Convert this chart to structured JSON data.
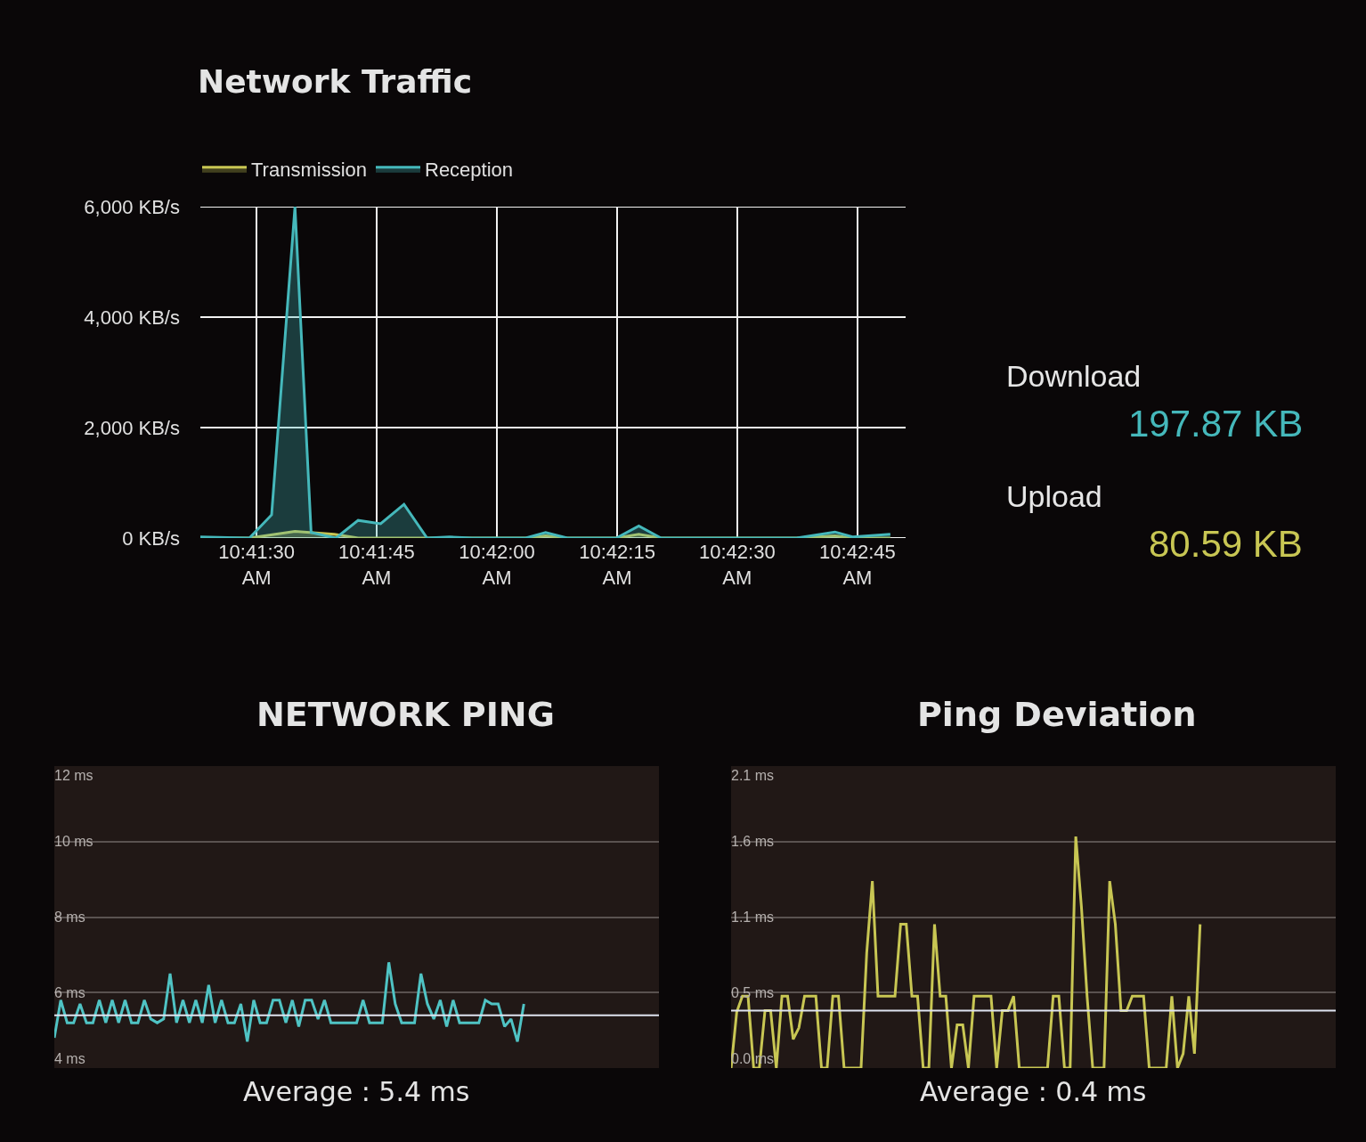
{
  "chart_data": [
    {
      "type": "area",
      "title": "Network Traffic",
      "legend": "top left",
      "grid": true,
      "xlim": [
        10.68972,
        10.71417
      ],
      "xticks": [
        {
          "value": 10.69167,
          "label": "10:41:30 AM"
        },
        {
          "value": 10.69583,
          "label": "10:41:45 AM"
        },
        {
          "value": 10.7,
          "label": "10:42:00 AM"
        },
        {
          "value": 10.70417,
          "label": "10:42:15 AM"
        },
        {
          "value": 10.70833,
          "label": "10:42:30 AM"
        },
        {
          "value": 10.7125,
          "label": "10:42:45 AM"
        }
      ],
      "ylim": [
        0,
        6000
      ],
      "yticks": [
        {
          "value": 0,
          "label": "0 KB/s"
        },
        {
          "value": 2000,
          "label": "2,000 KB/s"
        },
        {
          "value": 4000,
          "label": "4,000 KB/s"
        },
        {
          "value": 6000,
          "label": "6,000 KB/s"
        }
      ],
      "series": [
        {
          "name": "Transmission",
          "color": "#c8c653",
          "x": [
            10.68972,
            10.69142,
            10.693,
            10.69436,
            10.69519,
            10.69758,
            10.701,
            10.70169,
            10.70244,
            10.70414,
            10.70492,
            10.70569,
            10.71039,
            10.71172,
            10.71233,
            10.71364
          ],
          "values": [
            0,
            0,
            120,
            70,
            0,
            0,
            0,
            40,
            0,
            0,
            70,
            0,
            0,
            40,
            0,
            0
          ]
        },
        {
          "name": "Reception",
          "color": "#45b8bb",
          "x": [
            10.68972,
            10.69142,
            10.69219,
            10.693,
            10.69356,
            10.69442,
            10.69519,
            10.69597,
            10.69678,
            10.69758,
            10.69836,
            10.69914,
            10.701,
            10.70169,
            10.70244,
            10.70414,
            10.70492,
            10.70569,
            10.71039,
            10.71172,
            10.71233,
            10.71364
          ],
          "values": [
            20,
            0,
            420,
            6000,
            100,
            0,
            320,
            260,
            610,
            0,
            20,
            0,
            0,
            100,
            0,
            0,
            220,
            0,
            0,
            110,
            20,
            70
          ]
        }
      ]
    },
    {
      "type": "other",
      "categories": [
        "Download",
        "Upload"
      ],
      "value_labels": [
        "197.87 KB",
        "80.59 KB"
      ],
      "colors": [
        "#45b8bb",
        "#c8c653"
      ]
    },
    {
      "type": "line",
      "title": "NETWORK PING",
      "grid": "y",
      "tick_labels": "y",
      "categories": [
        null,
        null,
        null,
        null,
        null,
        null,
        null,
        null,
        null,
        null,
        null,
        null,
        null,
        null,
        null,
        null,
        null,
        null,
        null,
        null,
        null,
        null,
        null,
        null,
        null,
        null,
        null,
        null,
        null,
        null,
        null,
        null,
        null,
        null,
        null,
        null,
        null,
        null,
        null,
        null,
        null,
        null,
        null,
        null,
        null,
        null,
        null,
        null,
        null,
        null,
        null,
        null,
        null,
        null,
        null,
        null,
        null,
        null,
        null,
        null,
        null,
        null,
        null,
        null,
        null,
        null,
        null,
        null,
        null,
        null,
        null,
        null,
        null,
        null,
        null,
        null,
        null,
        null,
        null,
        null,
        null,
        null,
        null,
        null,
        null,
        null,
        null,
        null,
        null,
        null,
        null,
        null,
        null,
        null,
        null
      ],
      "ylim": [
        4,
        12
      ],
      "yticks": [
        {
          "value": 4,
          "label": "4 ms"
        },
        {
          "value": 6,
          "label": "6 ms"
        },
        {
          "value": 8,
          "label": "8 ms"
        },
        {
          "value": 10,
          "label": "10 ms"
        },
        {
          "value": 12,
          "label": "12 ms"
        }
      ],
      "series": [
        {
          "color": "#4fc3c4",
          "values": [
            4.8,
            5.8,
            5.2,
            5.2,
            5.7,
            5.2,
            5.2,
            5.8,
            5.2,
            5.8,
            5.2,
            5.8,
            5.2,
            5.2,
            5.8,
            5.3,
            5.2,
            5.3,
            6.5,
            5.2,
            5.8,
            5.2,
            5.8,
            5.2,
            6.2,
            5.2,
            5.8,
            5.2,
            5.2,
            5.7,
            4.7,
            5.8,
            5.2,
            5.2,
            5.8,
            5.8,
            5.2,
            5.8,
            5.1,
            5.8,
            5.8,
            5.3,
            5.8,
            5.2,
            5.2,
            5.2,
            5.2,
            5.2,
            5.8,
            5.2,
            5.2,
            5.2,
            6.8,
            5.7,
            5.2,
            5.2,
            5.2,
            6.5,
            5.7,
            5.3,
            5.8,
            5.1,
            5.8,
            5.2,
            5.2,
            5.2,
            5.2,
            5.8,
            5.7,
            5.7,
            5.1,
            5.3,
            4.7,
            5.7,
            null,
            null,
            null,
            null,
            null,
            null,
            null,
            null,
            null,
            null,
            null,
            null,
            null,
            null,
            null,
            null,
            null,
            null,
            null,
            null,
            null
          ]
        }
      ],
      "ref_lines": [
        {
          "axis": "y",
          "value": 5.4,
          "color": "#dfe3f0"
        }
      ],
      "annotations": [
        "Average : 5.4 ms"
      ]
    },
    {
      "type": "line",
      "title": "Ping Deviation",
      "grid": "y",
      "tick_labels": "y",
      "categories": [
        null,
        null,
        null,
        null,
        null,
        null,
        null,
        null,
        null,
        null,
        null,
        null,
        null,
        null,
        null,
        null,
        null,
        null,
        null,
        null,
        null,
        null,
        null,
        null,
        null,
        null,
        null,
        null,
        null,
        null,
        null,
        null,
        null,
        null,
        null,
        null,
        null,
        null,
        null,
        null,
        null,
        null,
        null,
        null,
        null,
        null,
        null,
        null,
        null,
        null,
        null,
        null,
        null,
        null,
        null,
        null,
        null,
        null,
        null,
        null,
        null,
        null,
        null,
        null,
        null,
        null,
        null,
        null,
        null,
        null,
        null,
        null,
        null,
        null,
        null,
        null,
        null,
        null,
        null,
        null,
        null,
        null,
        null,
        null,
        null,
        null,
        null,
        null,
        null,
        null,
        null,
        null,
        null,
        null,
        null,
        null,
        null,
        null,
        null,
        null,
        null,
        null,
        null,
        null,
        null,
        null,
        null,
        null
      ],
      "ylim": [
        0,
        2.1
      ],
      "yticks": [
        {
          "value": 0,
          "label": "0.0 ms"
        },
        {
          "value": 0.525,
          "label": "0.5 ms"
        },
        {
          "value": 1.05,
          "label": "1.1 ms"
        },
        {
          "value": 1.575,
          "label": "1.6 ms"
        },
        {
          "value": 2.1,
          "label": "2.1 ms"
        }
      ],
      "series": [
        {
          "color": "#c8c653",
          "values": [
            0,
            0.39,
            0.5,
            0.5,
            0,
            0,
            0.4,
            0.4,
            0,
            0.5,
            0.5,
            0.2,
            0.28,
            0.5,
            0.5,
            0.5,
            0,
            0,
            0.5,
            0.5,
            0,
            0,
            0,
            0,
            0.8,
            1.3,
            0.5,
            0.5,
            0.5,
            0.5,
            1.0,
            1.0,
            0.5,
            0.5,
            0,
            0,
            1.0,
            0.5,
            0.5,
            0,
            0.3,
            0.3,
            0,
            0.5,
            0.5,
            0.5,
            0.5,
            0,
            0.4,
            0.4,
            0.5,
            0,
            0,
            0,
            0,
            0,
            0,
            0.5,
            0.5,
            0,
            0,
            1.61,
            1.12,
            0.5,
            0,
            0,
            0,
            1.3,
            1.0,
            0.4,
            0.4,
            0.5,
            0.5,
            0.5,
            0,
            0,
            0,
            0,
            0.5,
            0,
            0.1,
            0.5,
            0.1,
            1.0,
            null,
            null,
            null,
            null,
            null,
            null,
            null,
            null,
            null,
            null,
            null,
            null,
            null,
            null,
            null,
            null,
            null,
            null,
            null,
            null,
            null,
            null,
            null,
            null
          ]
        }
      ],
      "ref_lines": [
        {
          "axis": "y",
          "value": 0.4,
          "color": "#dfe3f0"
        }
      ],
      "annotations": [
        "Average : 0.4 ms"
      ]
    }
  ]
}
